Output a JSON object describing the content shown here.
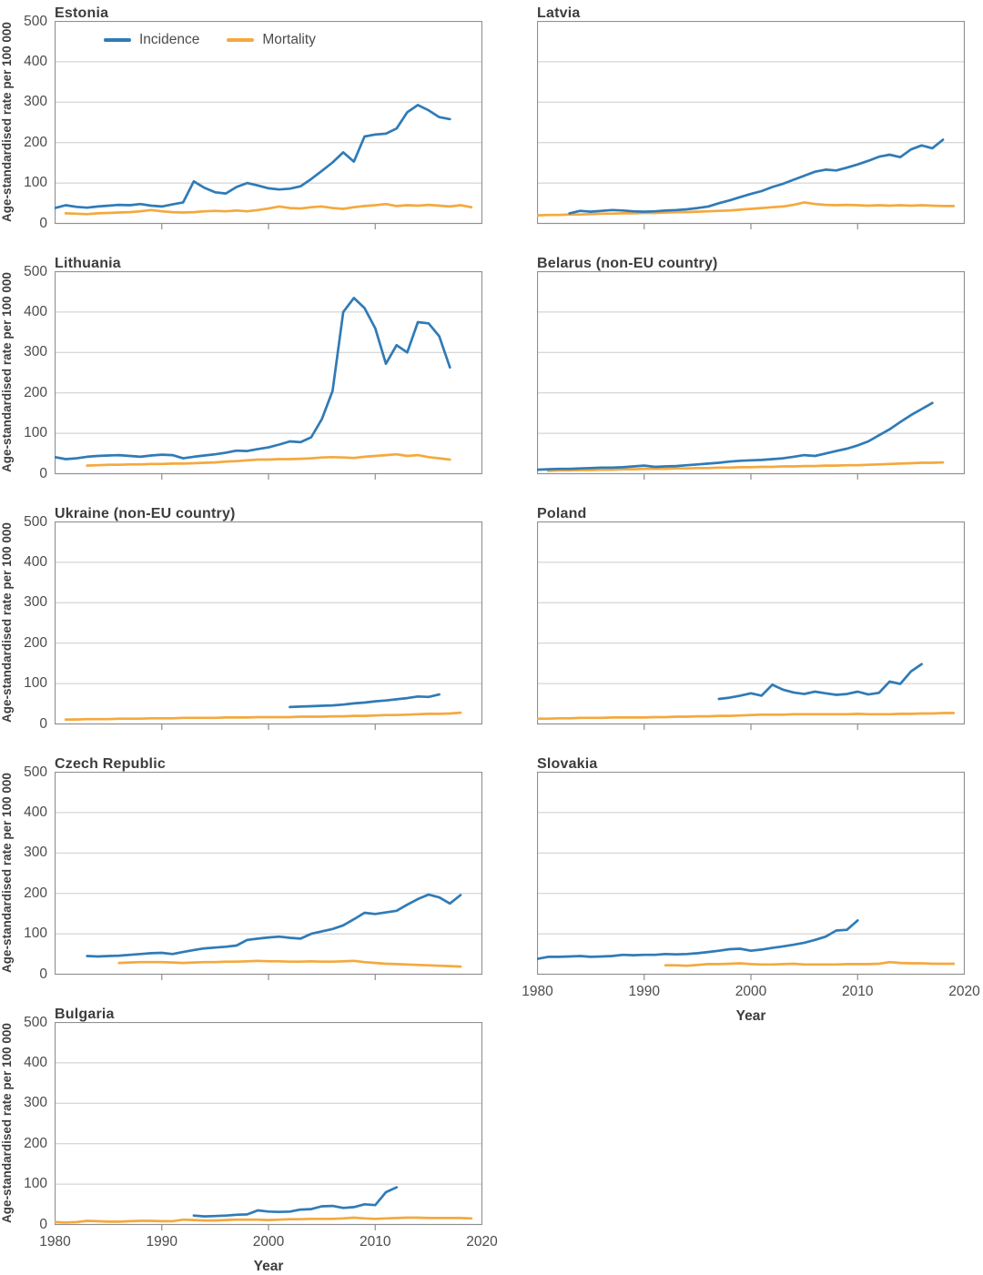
{
  "figure": {
    "ylabel": "Age-standardised rate per 100 000",
    "xlabel": "Year",
    "legend": {
      "incidence": "Incidence",
      "mortality": "Mortality"
    },
    "colors": {
      "incidence": "#2f7bb7",
      "mortality": "#f4a93e",
      "gridline": "#cbcbcb",
      "frame": "#909090",
      "title_text": "#3d3d3d",
      "tick_text": "#4c4c4c"
    }
  },
  "chart_data": {
    "type": "line",
    "ylabel": "Age-standardised rate per 100 000",
    "xlabel": "Year",
    "legend": {
      "incidence": "Incidence",
      "mortality": "Mortality"
    },
    "axes": {
      "x_range": [
        1980,
        2020
      ],
      "y_range": [
        0,
        500
      ],
      "x_ticks": [
        "1980",
        "1990",
        "2000",
        "2010",
        "2020"
      ],
      "x_tick_values": [
        1980,
        1990,
        2000,
        2010,
        2020
      ],
      "y_ticks": [
        "500",
        "400",
        "300",
        "200",
        "100",
        "0"
      ],
      "y_tick_values": [
        500,
        400,
        300,
        200,
        100,
        0
      ],
      "grid": "horizontal-only",
      "legend_position": "top-left-first-panel"
    },
    "panels": [
      {
        "id": "estonia",
        "title": "Estonia",
        "column": "left",
        "show_y_axis": true,
        "show_legend": true,
        "show_x_labels": false,
        "incidence": {
          "start_year": 1980,
          "values": [
            38,
            45,
            41,
            39,
            42,
            44,
            46,
            45,
            48,
            44,
            42,
            47,
            52,
            104,
            88,
            77,
            74,
            90,
            100,
            94,
            87,
            84,
            86,
            92,
            110,
            130,
            151,
            176,
            153,
            215,
            220,
            222,
            235,
            275,
            293,
            280,
            263,
            258
          ]
        },
        "mortality": {
          "start_year": 1981,
          "values": [
            25,
            24,
            23,
            25,
            26,
            27,
            28,
            30,
            33,
            30,
            28,
            27,
            28,
            30,
            31,
            30,
            32,
            30,
            33,
            37,
            42,
            38,
            37,
            40,
            42,
            38,
            36,
            40,
            43,
            45,
            48,
            43,
            45,
            44,
            46,
            44,
            42,
            45,
            40
          ]
        }
      },
      {
        "id": "latvia",
        "title": "Latvia",
        "column": "right",
        "show_y_axis": false,
        "show_legend": false,
        "show_x_labels": false,
        "incidence": {
          "start_year": 1983,
          "values": [
            25,
            31,
            29,
            31,
            33,
            32,
            30,
            29,
            30,
            32,
            33,
            35,
            38,
            42,
            50,
            57,
            65,
            73,
            80,
            90,
            98,
            108,
            118,
            128,
            133,
            131,
            138,
            146,
            155,
            165,
            170,
            164,
            183,
            193,
            186,
            207
          ]
        },
        "mortality": {
          "start_year": 1980,
          "values": [
            20,
            21,
            21,
            22,
            22,
            23,
            24,
            24,
            25,
            25,
            26,
            26,
            27,
            28,
            28,
            29,
            30,
            31,
            32,
            34,
            36,
            38,
            40,
            42,
            46,
            52,
            48,
            46,
            45,
            46,
            45,
            44,
            45,
            44,
            45,
            44,
            45,
            44,
            43,
            43
          ]
        }
      },
      {
        "id": "lithuania",
        "title": "Lithuania",
        "column": "left",
        "show_y_axis": true,
        "show_legend": false,
        "show_x_labels": false,
        "incidence": {
          "start_year": 1980,
          "values": [
            41,
            36,
            38,
            42,
            44,
            45,
            46,
            44,
            42,
            45,
            47,
            46,
            38,
            42,
            45,
            48,
            52,
            57,
            56,
            61,
            65,
            72,
            80,
            78,
            90,
            135,
            205,
            400,
            435,
            410,
            360,
            272,
            318,
            300,
            375,
            372,
            340,
            263
          ]
        },
        "mortality": {
          "start_year": 1983,
          "values": [
            20,
            21,
            22,
            22,
            23,
            23,
            24,
            24,
            25,
            25,
            26,
            27,
            28,
            30,
            31,
            33,
            35,
            35,
            36,
            36,
            37,
            38,
            40,
            41,
            40,
            39,
            42,
            44,
            46,
            48,
            44,
            46,
            41,
            38,
            35
          ]
        }
      },
      {
        "id": "belarus",
        "title": "Belarus (non-EU country)",
        "column": "right",
        "show_y_axis": false,
        "show_legend": false,
        "show_x_labels": false,
        "incidence": {
          "start_year": 1980,
          "values": [
            10,
            11,
            12,
            12,
            13,
            14,
            15,
            15,
            16,
            18,
            20,
            17,
            18,
            19,
            21,
            23,
            25,
            27,
            30,
            32,
            33,
            34,
            36,
            38,
            42,
            46,
            44,
            50,
            56,
            62,
            70,
            80,
            95,
            110,
            128,
            145,
            160,
            175
          ]
        },
        "mortality": {
          "start_year": 1981,
          "values": [
            7,
            8,
            8,
            9,
            9,
            10,
            10,
            11,
            11,
            12,
            12,
            12,
            13,
            13,
            14,
            14,
            15,
            15,
            16,
            16,
            17,
            17,
            18,
            18,
            19,
            19,
            20,
            20,
            21,
            21,
            22,
            23,
            24,
            25,
            26,
            27,
            27,
            28
          ]
        }
      },
      {
        "id": "ukraine",
        "title": "Ukraine (non-EU country)",
        "column": "left",
        "show_y_axis": true,
        "show_legend": false,
        "show_x_labels": false,
        "incidence": {
          "start_year": 2002,
          "values": [
            42,
            43,
            44,
            45,
            46,
            48,
            51,
            53,
            56,
            58,
            61,
            64,
            68,
            67,
            73
          ]
        },
        "mortality": {
          "start_year": 1981,
          "values": [
            11,
            11,
            12,
            12,
            12,
            13,
            13,
            13,
            14,
            14,
            14,
            15,
            15,
            15,
            15,
            16,
            16,
            16,
            17,
            17,
            17,
            17,
            18,
            18,
            18,
            19,
            19,
            20,
            20,
            21,
            22,
            22,
            23,
            24,
            25,
            25,
            26,
            28
          ]
        }
      },
      {
        "id": "poland",
        "title": "Poland",
        "column": "right",
        "show_y_axis": false,
        "show_legend": false,
        "show_x_labels": false,
        "incidence": {
          "start_year": 1997,
          "values": [
            62,
            65,
            70,
            76,
            70,
            97,
            85,
            78,
            74,
            80,
            76,
            72,
            74,
            80,
            73,
            77,
            105,
            99,
            130,
            148
          ]
        },
        "mortality": {
          "start_year": 1980,
          "values": [
            13,
            13,
            14,
            14,
            15,
            15,
            15,
            16,
            16,
            16,
            16,
            17,
            17,
            18,
            18,
            19,
            19,
            20,
            20,
            21,
            22,
            23,
            23,
            23,
            24,
            24,
            24,
            24,
            24,
            24,
            25,
            24,
            24,
            24,
            25,
            25,
            26,
            26,
            27,
            27
          ]
        }
      },
      {
        "id": "czech-republic",
        "title": "Czech Republic",
        "column": "left",
        "show_y_axis": true,
        "show_legend": false,
        "show_x_labels": false,
        "incidence": {
          "start_year": 1983,
          "values": [
            45,
            44,
            45,
            46,
            48,
            50,
            52,
            53,
            50,
            55,
            60,
            64,
            66,
            68,
            71,
            85,
            88,
            91,
            93,
            90,
            88,
            100,
            106,
            112,
            121,
            136,
            152,
            149,
            153,
            157,
            172,
            186,
            197,
            190,
            175,
            196
          ]
        },
        "mortality": {
          "start_year": 1986,
          "values": [
            28,
            29,
            30,
            30,
            30,
            29,
            28,
            29,
            30,
            30,
            31,
            31,
            32,
            33,
            32,
            32,
            31,
            31,
            32,
            31,
            31,
            32,
            33,
            30,
            28,
            26,
            25,
            24,
            23,
            22,
            21,
            20,
            19
          ]
        }
      },
      {
        "id": "slovakia",
        "title": "Slovakia",
        "column": "right",
        "show_y_axis": false,
        "show_legend": false,
        "show_x_labels": true,
        "incidence": {
          "start_year": 1980,
          "values": [
            38,
            43,
            43,
            44,
            45,
            43,
            44,
            45,
            48,
            47,
            48,
            48,
            50,
            49,
            50,
            52,
            55,
            58,
            62,
            63,
            58,
            61,
            65,
            69,
            73,
            78,
            85,
            93,
            108,
            110,
            133
          ]
        },
        "mortality": {
          "start_year": 1992,
          "values": [
            22,
            22,
            21,
            23,
            25,
            25,
            26,
            27,
            25,
            24,
            24,
            25,
            26,
            24,
            24,
            24,
            24,
            25,
            25,
            25,
            26,
            30,
            28,
            27,
            27,
            26,
            26,
            26
          ]
        }
      },
      {
        "id": "bulgaria",
        "title": "Bulgaria",
        "column": "left",
        "show_y_axis": true,
        "show_legend": false,
        "show_x_labels": true,
        "incidence": {
          "start_year": 1993,
          "values": [
            22,
            20,
            21,
            22,
            24,
            25,
            35,
            32,
            31,
            32,
            37,
            38,
            45,
            46,
            41,
            43,
            50,
            48,
            80,
            92
          ]
        },
        "mortality": {
          "start_year": 1980,
          "values": [
            6,
            5,
            6,
            9,
            8,
            7,
            7,
            8,
            9,
            9,
            8,
            8,
            12,
            11,
            10,
            10,
            11,
            12,
            12,
            12,
            11,
            12,
            13,
            13,
            14,
            14,
            14,
            15,
            17,
            15,
            14,
            15,
            16,
            17,
            17,
            16,
            16,
            16,
            16,
            15
          ]
        }
      }
    ]
  }
}
